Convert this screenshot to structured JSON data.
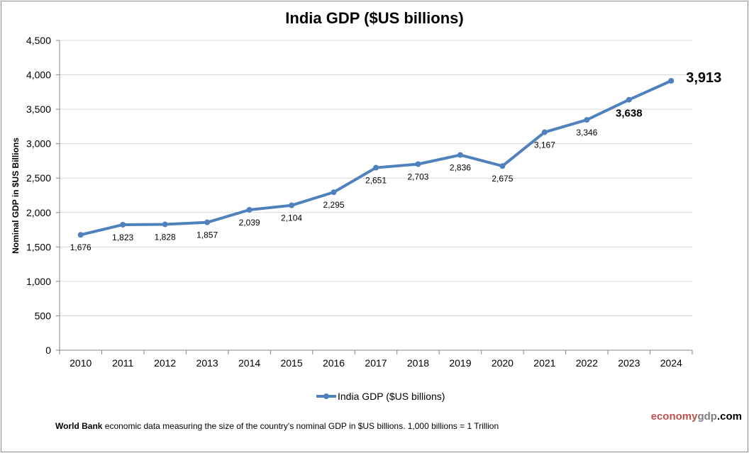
{
  "chart_data": {
    "type": "line",
    "title": "India GDP ($US billions)",
    "xlabel": "",
    "ylabel": "Nominal GDP in $US Billions",
    "categories": [
      "2010",
      "2011",
      "2012",
      "2013",
      "2014",
      "2015",
      "2016",
      "2017",
      "2018",
      "2019",
      "2020",
      "2021",
      "2022",
      "2023",
      "2024"
    ],
    "series": [
      {
        "name": "India GDP ($US billions)",
        "color": "#4f81bd",
        "values": [
          1676,
          1823,
          1828,
          1857,
          2039,
          2104,
          2295,
          2651,
          2703,
          2836,
          2675,
          3167,
          3346,
          3638,
          3913
        ],
        "labels": [
          "1,676",
          "1,823",
          "1,828",
          "1,857",
          "2,039",
          "2,104",
          "2,295",
          "2,651",
          "2,703",
          "2,836",
          "2,675",
          "3,167",
          "3,346",
          "3,638",
          "3,913"
        ]
      }
    ],
    "ylim": [
      0,
      4500
    ],
    "yticks": [
      0,
      500,
      1000,
      1500,
      2000,
      2500,
      3000,
      3500,
      4000,
      4500
    ],
    "ytick_labels": [
      "0",
      "500",
      "1,000",
      "1,500",
      "2,000",
      "2,500",
      "3,000",
      "3,500",
      "4,000",
      "4,500"
    ],
    "grid": true,
    "legend_position": "bottom-center",
    "highlighted_labels": [
      "2023",
      "2024"
    ]
  },
  "footnote": {
    "bold": "World Bank",
    "text": " economic data  measuring the size of the country's nominal  GDP in $US billions. 1,000 billions = 1 Trillion"
  },
  "brand": {
    "part1": "economy",
    "part2": "gdp",
    "part3": ".com"
  }
}
